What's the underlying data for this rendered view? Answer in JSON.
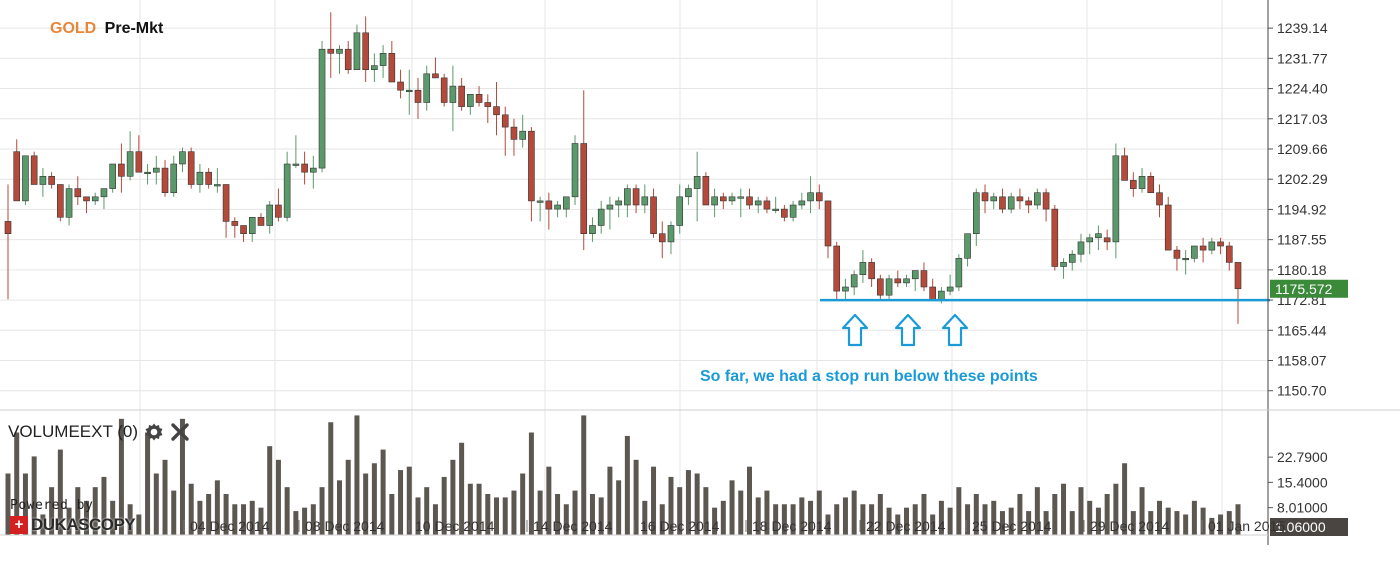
{
  "header": {
    "symbol": "GOLD",
    "session": "Pre-Mkt"
  },
  "price_axis": {
    "ticks": [
      "1239.14",
      "1231.77",
      "1224.40",
      "1217.03",
      "1209.66",
      "1202.29",
      "1194.92",
      "1187.55",
      "1180.18",
      "1172.81",
      "1165.44",
      "1158.07",
      "1150.70"
    ],
    "current_price": "1175.572",
    "current_price_color": "#3a8a3a"
  },
  "volume_panel": {
    "label": "VOLUMEEXT (0)",
    "settings_icon": "gear-icon",
    "close_icon": "close-icon",
    "ticks": [
      "22.7900",
      "15.4000",
      "8.01000"
    ],
    "current_value": "1.06000",
    "bar_color": "#5d5751"
  },
  "date_labels": [
    "04 Dec 2014",
    "08 Dec 2014",
    "10 Dec 2014",
    "14 Dec 2014",
    "16 Dec 2014",
    "18 Dec 2014",
    "22 Dec 2014",
    "25 Dec 2014",
    "29 Dec 2014",
    "01 Jan 2015"
  ],
  "annotation": {
    "text": "So far, we had a stop run below these points",
    "color": "#1a9bd7",
    "support_level": 1172.81
  },
  "watermark": {
    "powered_by": "Powered by",
    "brand": "DUKASCOPY"
  },
  "colors": {
    "up": "#5a9a6a",
    "down": "#b54a3a",
    "grid": "#e6e6e6"
  },
  "chart_data": {
    "type": "candlestick",
    "ylim": [
      1146,
      1246
    ],
    "volume_ylim": [
      0,
      36
    ],
    "candles": [
      [
        1192,
        1201,
        1173,
        1189,
        18
      ],
      [
        1209,
        1212,
        1197,
        1197,
        30
      ],
      [
        1197,
        1208,
        1196,
        1208,
        18
      ],
      [
        1208,
        1209,
        1201,
        1201,
        23
      ],
      [
        1201,
        1205,
        1198,
        1203,
        6
      ],
      [
        1203,
        1204,
        1200,
        1201,
        14
      ],
      [
        1201,
        1201,
        1192,
        1193,
        25
      ],
      [
        1193,
        1201,
        1191,
        1200,
        8
      ],
      [
        1200,
        1203,
        1196,
        1198,
        14
      ],
      [
        1198,
        1198,
        1194,
        1197,
        10
      ],
      [
        1197,
        1199,
        1196,
        1198,
        14
      ],
      [
        1198,
        1200,
        1195,
        1200,
        17
      ],
      [
        1200,
        1206,
        1199,
        1206,
        10
      ],
      [
        1206,
        1211,
        1199,
        1203,
        34
      ],
      [
        1203,
        1214,
        1202,
        1209,
        9
      ],
      [
        1209,
        1213,
        1204,
        1204,
        6
      ],
      [
        1204,
        1206,
        1201,
        1204,
        30
      ],
      [
        1204,
        1208,
        1201,
        1205,
        18
      ],
      [
        1205,
        1207,
        1198,
        1199,
        22
      ],
      [
        1199,
        1208,
        1198,
        1206,
        13
      ],
      [
        1206,
        1210,
        1204,
        1209,
        34
      ],
      [
        1209,
        1210,
        1200,
        1201,
        15
      ],
      [
        1201,
        1206,
        1199,
        1204,
        10
      ],
      [
        1204,
        1205,
        1200,
        1201,
        12
      ],
      [
        1201,
        1205,
        1199,
        1201,
        16
      ],
      [
        1201,
        1201,
        1188,
        1192,
        12
      ],
      [
        1192,
        1193,
        1188,
        1191,
        9
      ],
      [
        1191,
        1191,
        1187,
        1189,
        9
      ],
      [
        1189,
        1193,
        1187,
        1193,
        10
      ],
      [
        1193,
        1194,
        1191,
        1191,
        8
      ],
      [
        1191,
        1197,
        1189,
        1196,
        26
      ],
      [
        1196,
        1200,
        1192,
        1193,
        22
      ],
      [
        1193,
        1209,
        1192,
        1206,
        14
      ],
      [
        1206,
        1213,
        1205,
        1206,
        7
      ],
      [
        1206,
        1209,
        1201,
        1204,
        8
      ],
      [
        1204,
        1208,
        1200,
        1205,
        9
      ],
      [
        1205,
        1236,
        1204,
        1234,
        14
      ],
      [
        1234,
        1243,
        1227,
        1233,
        33
      ],
      [
        1233,
        1235,
        1228,
        1234,
        16
      ],
      [
        1234,
        1236,
        1228,
        1229,
        22
      ],
      [
        1229,
        1240,
        1229,
        1238,
        35
      ],
      [
        1238,
        1242,
        1226,
        1229,
        18
      ],
      [
        1229,
        1233,
        1226,
        1230,
        21
      ],
      [
        1230,
        1235,
        1227,
        1233,
        25
      ],
      [
        1233,
        1236,
        1226,
        1226,
        12
      ],
      [
        1226,
        1229,
        1222,
        1224,
        19
      ],
      [
        1224,
        1229,
        1218,
        1224,
        20
      ],
      [
        1224,
        1227,
        1217,
        1221,
        11
      ],
      [
        1221,
        1230,
        1219,
        1228,
        14
      ],
      [
        1228,
        1232,
        1227,
        1227,
        9
      ],
      [
        1227,
        1228,
        1220,
        1221,
        17
      ],
      [
        1221,
        1230,
        1214,
        1225,
        22
      ],
      [
        1225,
        1227,
        1219,
        1220,
        27
      ],
      [
        1220,
        1223,
        1218,
        1223,
        15
      ],
      [
        1223,
        1225,
        1220,
        1221,
        15
      ],
      [
        1221,
        1223,
        1216,
        1220,
        12
      ],
      [
        1220,
        1226,
        1213,
        1218,
        11
      ],
      [
        1218,
        1220,
        1208,
        1215,
        11
      ],
      [
        1215,
        1217,
        1208,
        1212,
        13
      ],
      [
        1212,
        1218,
        1210,
        1214,
        18
      ],
      [
        1214,
        1215,
        1192,
        1197,
        30
      ],
      [
        1197,
        1198,
        1192,
        1197,
        13
      ],
      [
        1197,
        1199,
        1190,
        1195,
        20
      ],
      [
        1195,
        1197,
        1193,
        1196,
        12
      ],
      [
        1195,
        1198,
        1193,
        1198,
        9
      ],
      [
        1198,
        1213,
        1196,
        1211,
        13
      ],
      [
        1211,
        1224,
        1185,
        1189,
        35
      ],
      [
        1189,
        1193,
        1187,
        1191,
        12
      ],
      [
        1191,
        1197,
        1189,
        1195,
        11
      ],
      [
        1195,
        1198,
        1190,
        1196,
        20
      ],
      [
        1196,
        1198,
        1193,
        1197,
        16
      ],
      [
        1196,
        1201,
        1193,
        1200,
        29
      ],
      [
        1200,
        1201,
        1194,
        1196,
        22
      ],
      [
        1196,
        1201,
        1194,
        1198,
        10
      ],
      [
        1198,
        1200,
        1188,
        1189,
        20
      ],
      [
        1189,
        1192,
        1183,
        1187,
        9
      ],
      [
        1187,
        1192,
        1184,
        1191,
        17
      ],
      [
        1191,
        1201,
        1189,
        1198,
        14
      ],
      [
        1198,
        1201,
        1196,
        1200,
        19
      ],
      [
        1200,
        1209,
        1192,
        1203,
        18
      ],
      [
        1203,
        1204,
        1196,
        1196,
        14
      ],
      [
        1196,
        1200,
        1193,
        1198,
        8
      ],
      [
        1198,
        1199,
        1195,
        1197,
        10
      ],
      [
        1197,
        1199,
        1196,
        1198,
        16
      ],
      [
        1198,
        1200,
        1193,
        1198,
        13
      ],
      [
        1198,
        1200,
        1195,
        1196,
        20
      ],
      [
        1196,
        1198,
        1194,
        1197,
        11
      ],
      [
        1197,
        1198,
        1194,
        1195,
        13
      ],
      [
        1195,
        1198,
        1194,
        1195,
        9
      ],
      [
        1195,
        1196,
        1192,
        1193,
        9
      ],
      [
        1193,
        1197,
        1192,
        1196,
        9
      ],
      [
        1196,
        1199,
        1195,
        1197,
        11
      ],
      [
        1197,
        1203,
        1194,
        1199,
        10
      ],
      [
        1199,
        1201,
        1195,
        1197,
        13
      ],
      [
        1197,
        1197,
        1183,
        1186,
        6
      ],
      [
        1186,
        1187,
        1173,
        1175,
        9
      ],
      [
        1175,
        1178,
        1173,
        1176,
        11
      ],
      [
        1176,
        1180,
        1174,
        1179,
        13
      ],
      [
        1179,
        1185,
        1177,
        1182,
        9
      ],
      [
        1182,
        1183,
        1176,
        1178,
        9
      ],
      [
        1178,
        1179,
        1173,
        1174,
        12
      ],
      [
        1174,
        1179,
        1173,
        1178,
        8
      ],
      [
        1178,
        1180,
        1176,
        1177,
        6
      ],
      [
        1177,
        1179,
        1176,
        1178,
        8
      ],
      [
        1178,
        1180,
        1175,
        1180,
        9
      ],
      [
        1180,
        1182,
        1175,
        1176,
        12
      ],
      [
        1176,
        1178,
        1173,
        1173,
        6
      ],
      [
        1173,
        1176,
        1172,
        1175,
        10
      ],
      [
        1175,
        1179,
        1174,
        1176,
        8
      ],
      [
        1176,
        1184,
        1175,
        1183,
        14
      ],
      [
        1183,
        1189,
        1181,
        1189,
        9
      ],
      [
        1189,
        1200,
        1186,
        1199,
        12
      ],
      [
        1199,
        1201,
        1194,
        1197,
        9
      ],
      [
        1197,
        1199,
        1195,
        1198,
        10
      ],
      [
        1198,
        1200,
        1194,
        1195,
        7
      ],
      [
        1195,
        1199,
        1194,
        1198,
        8
      ],
      [
        1198,
        1200,
        1195,
        1197,
        12
      ],
      [
        1197,
        1198,
        1194,
        1196,
        7
      ],
      [
        1196,
        1200,
        1195,
        1199,
        14
      ],
      [
        1199,
        1200,
        1192,
        1195,
        7
      ],
      [
        1195,
        1196,
        1180,
        1181,
        12
      ],
      [
        1181,
        1183,
        1178,
        1182,
        15
      ],
      [
        1182,
        1185,
        1180,
        1184,
        7
      ],
      [
        1184,
        1189,
        1182,
        1187,
        14
      ],
      [
        1187,
        1189,
        1184,
        1188,
        10
      ],
      [
        1188,
        1191,
        1185,
        1189,
        8
      ],
      [
        1188,
        1190,
        1185,
        1187,
        12
      ],
      [
        1187,
        1211,
        1183,
        1208,
        15
      ],
      [
        1208,
        1210,
        1202,
        1202,
        21
      ],
      [
        1202,
        1204,
        1198,
        1200,
        7
      ],
      [
        1200,
        1205,
        1199,
        1203,
        14
      ],
      [
        1203,
        1204,
        1199,
        1199,
        7
      ],
      [
        1199,
        1201,
        1193,
        1196,
        10
      ],
      [
        1196,
        1198,
        1185,
        1185,
        8
      ],
      [
        1185,
        1186,
        1180,
        1183,
        7
      ],
      [
        1183,
        1185,
        1179,
        1183,
        6
      ],
      [
        1183,
        1186,
        1182,
        1186,
        10
      ],
      [
        1186,
        1188,
        1182,
        1185,
        8
      ],
      [
        1185,
        1188,
        1184,
        1187,
        5
      ],
      [
        1187,
        1188,
        1184,
        1186,
        6
      ],
      [
        1186,
        1187,
        1180,
        1182,
        7
      ],
      [
        1182,
        1182,
        1167,
        1175.572,
        9
      ]
    ]
  }
}
